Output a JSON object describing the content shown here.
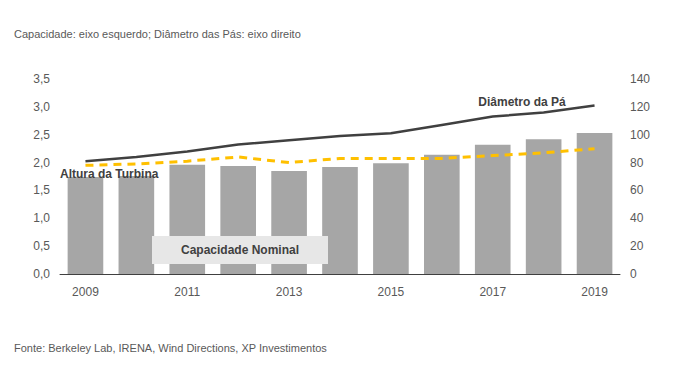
{
  "chart_data": {
    "type": "bar",
    "title": "Capacidade: eixo esquerdo; Diâmetro das Pás: eixo direito",
    "source": "Fonte: Berkeley Lab, IRENA, Wind Directions, XP Investimentos",
    "categories": [
      "2009",
      null,
      "2011",
      null,
      "2013",
      null,
      "2015",
      null,
      "2017",
      null,
      "2019"
    ],
    "series": [
      {
        "name": "Capacidade Nominal",
        "type": "bar",
        "color": "#a6a6a6",
        "values": [
          1.74,
          1.76,
          1.96,
          1.94,
          1.85,
          1.92,
          1.99,
          2.14,
          2.32,
          2.42,
          2.53
        ]
      },
      {
        "name": "Diâmetro da Pá",
        "type": "line",
        "axis": "y2",
        "color": "#404040",
        "line_style": "solid",
        "marker": "none",
        "values": [
          81,
          84,
          88,
          93,
          96,
          99,
          101,
          107,
          113,
          116,
          121
        ]
      },
      {
        "name": "Altura da Turbina",
        "type": "line",
        "axis": "y2",
        "color": "#ffc000",
        "line_style": "dashed",
        "marker": "none",
        "values": [
          78,
          79,
          81,
          84,
          80,
          83,
          83,
          83,
          85,
          87,
          90
        ]
      }
    ],
    "ylim": [
      0,
      3.5
    ],
    "yticks": [
      {
        "value": 0,
        "label": "0,0"
      },
      {
        "value": 0.5,
        "label": "0,5"
      },
      {
        "value": 1,
        "label": "1,0"
      },
      {
        "value": 1.5,
        "label": "1,5"
      },
      {
        "value": 2,
        "label": "2,0"
      },
      {
        "value": 2.5,
        "label": "2,5"
      },
      {
        "value": 3,
        "label": "3,0"
      },
      {
        "value": 3.5,
        "label": "3,5"
      }
    ],
    "y2lim": [
      0,
      140
    ],
    "y2ticks": [
      0,
      20,
      40,
      60,
      80,
      100,
      120,
      140
    ],
    "grid": false
  }
}
